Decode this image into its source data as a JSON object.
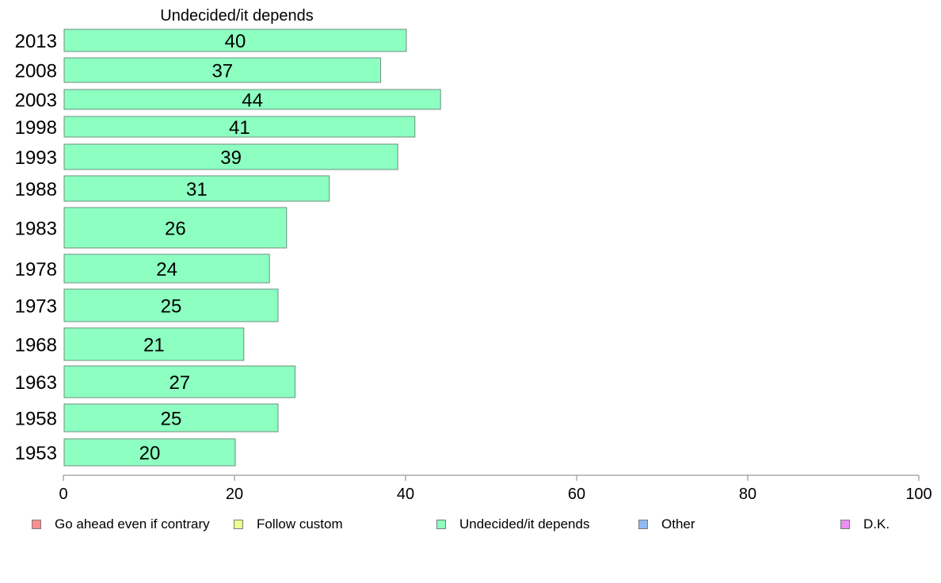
{
  "chart_data": {
    "type": "bar",
    "orientation": "horizontal",
    "title": "Undecided/it depends",
    "categories": [
      "2013",
      "2008",
      "2003",
      "1998",
      "1993",
      "1988",
      "1983",
      "1978",
      "1973",
      "1968",
      "1963",
      "1958",
      "1953"
    ],
    "series": [
      {
        "name": "Undecided/it depends",
        "values": [
          40,
          37,
          44,
          41,
          39,
          31,
          26,
          24,
          25,
          21,
          27,
          25,
          20
        ],
        "color": "#8cffc1"
      }
    ],
    "data_labels": [
      "40",
      "37",
      "44",
      "41",
      "39",
      "31",
      "26",
      "24",
      "25",
      "21",
      "27",
      "25",
      "20"
    ],
    "xlim": [
      0,
      100
    ],
    "x_ticks": [
      0,
      20,
      40,
      60,
      80,
      100
    ],
    "grid": false,
    "legend_position": "bottom",
    "legend": [
      {
        "label": "Go ahead even if contrary",
        "color": "#ff8f8f"
      },
      {
        "label": "Follow custom",
        "color": "#eeff8f"
      },
      {
        "label": "Undecided/it depends",
        "color": "#8cffc1"
      },
      {
        "label": "Other",
        "color": "#8fb8f5"
      },
      {
        "label": "D.K.",
        "color": "#e98ff5"
      }
    ]
  }
}
